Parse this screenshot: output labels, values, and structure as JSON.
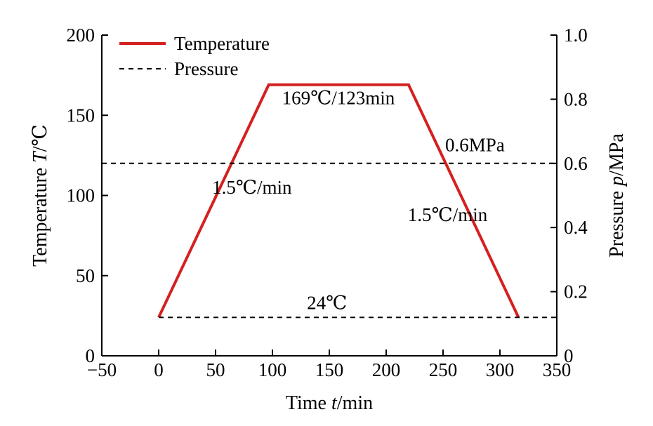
{
  "chart_data": {
    "type": "line",
    "x_axis": {
      "label_prefix": "Time ",
      "label_var": "t",
      "label_suffix": "/min",
      "range": [
        -50,
        350
      ],
      "ticks": [
        -50,
        0,
        50,
        100,
        150,
        200,
        250,
        300,
        350
      ],
      "tick_labels": [
        "−50",
        "0",
        "50",
        "100",
        "150",
        "200",
        "250",
        "300",
        "350"
      ]
    },
    "y_left": {
      "label_prefix": "Temperature ",
      "label_var": "T",
      "label_suffix": "/℃",
      "range": [
        0,
        200
      ],
      "ticks": [
        0,
        50,
        100,
        150,
        200
      ],
      "tick_labels": [
        "0",
        "50",
        "100",
        "150",
        "200"
      ]
    },
    "y_right": {
      "label_prefix": "Pressure ",
      "label_var": "p",
      "label_suffix": "/MPa",
      "range": [
        0,
        1.0
      ],
      "ticks": [
        0,
        0.2,
        0.4,
        0.6,
        0.8,
        1.0
      ],
      "tick_labels": [
        "0",
        "0.2",
        "0.4",
        "0.6",
        "0.8",
        "1.0"
      ]
    },
    "series": [
      {
        "name": "Temperature",
        "axis": "left",
        "style": "solid",
        "color": "#d42020",
        "x": [
          0,
          96.7,
          219.7,
          316.3
        ],
        "y": [
          24,
          169,
          169,
          24
        ]
      },
      {
        "name": "Pressure",
        "axis": "right",
        "style": "dashed",
        "color": "#000000",
        "x": [
          -50,
          350
        ],
        "y": [
          0.6,
          0.6
        ]
      },
      {
        "axis": "left",
        "style": "dashed",
        "color": "#000000",
        "x": [
          0,
          350
        ],
        "y": [
          24,
          24
        ]
      }
    ],
    "annotations": [
      {
        "text": "169℃/123min",
        "x": 158,
        "y": 157
      },
      {
        "text": "0.6MPa",
        "x": 278,
        "y": 0.638,
        "axis": "right"
      },
      {
        "text": "1.5℃/min",
        "x": 82,
        "y": 101
      },
      {
        "text": "1.5℃/min",
        "x": 254,
        "y": 84
      },
      {
        "text": "24℃",
        "x": 148,
        "y": 29
      }
    ],
    "legend": {
      "position": "top-left",
      "entries": [
        {
          "label": "Temperature",
          "style": "solid",
          "color": "#d42020"
        },
        {
          "label": "Pressure",
          "style": "dashed",
          "color": "#000000"
        }
      ]
    },
    "grid": false
  }
}
